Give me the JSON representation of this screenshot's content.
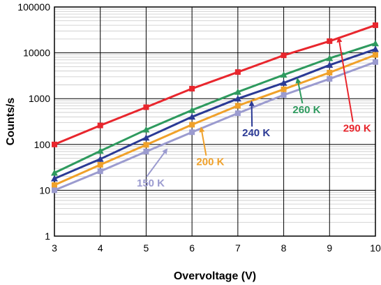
{
  "chart_data": {
    "type": "line",
    "title": "",
    "xlabel": "Overvoltage (V)",
    "ylabel": "Counts/s",
    "xlim": [
      3,
      10
    ],
    "ylim": [
      1,
      100000
    ],
    "yscale": "log",
    "grid": true,
    "x_ticks": [
      "3",
      "4",
      "5",
      "6",
      "7",
      "8",
      "9",
      "10"
    ],
    "y_ticks": [
      "1",
      "10",
      "100",
      "1000",
      "10000",
      "100000"
    ],
    "x": [
      3,
      4,
      5,
      6,
      7,
      8,
      9,
      10
    ],
    "series": [
      {
        "name": "290 K",
        "color": "#e8262d",
        "marker": "square",
        "values": [
          100,
          260,
          650,
          1650,
          3800,
          8800,
          18000,
          40000
        ],
        "label_at": [
          9.6,
          190
        ],
        "arrow_to": [
          9.2,
          21000
        ]
      },
      {
        "name": "260 K",
        "color": "#2e9a5e",
        "marker": "triangle",
        "values": [
          24,
          72,
          210,
          560,
          1400,
          3300,
          7600,
          16000
        ],
        "label_at": [
          8.5,
          480
        ],
        "arrow_to": [
          8.3,
          2700
        ]
      },
      {
        "name": "240 K",
        "color": "#2b3a95",
        "marker": "triangle",
        "values": [
          18,
          48,
          140,
          400,
          1000,
          2200,
          5400,
          12000
        ],
        "label_at": [
          7.4,
          150
        ],
        "arrow_to": [
          7.3,
          850
        ]
      },
      {
        "name": "200 K",
        "color": "#f0a12a",
        "marker": "square",
        "values": [
          13,
          36,
          98,
          270,
          700,
          1600,
          3700,
          9000
        ],
        "label_at": [
          6.4,
          35
        ],
        "arrow_to": [
          6.2,
          230
        ]
      },
      {
        "name": "150 K",
        "color": "#9b9bcf",
        "marker": "square",
        "values": [
          10,
          26,
          70,
          185,
          480,
          1200,
          2700,
          6300
        ],
        "label_at": [
          5.1,
          12
        ],
        "arrow_to": [
          5.45,
          78
        ]
      }
    ]
  }
}
